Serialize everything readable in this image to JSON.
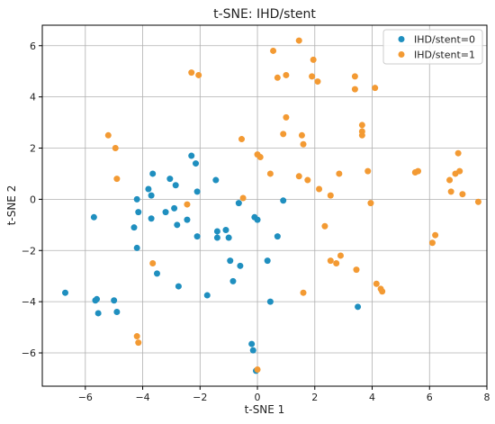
{
  "chart_data": {
    "type": "scatter",
    "title": "t-SNE: IHD/stent",
    "xlabel": "t-SNE 1",
    "ylabel": "t-SNE 2",
    "xlim": [
      -7.5,
      8.0
    ],
    "ylim": [
      -7.3,
      6.8
    ],
    "xticks": [
      -6,
      -4,
      -2,
      0,
      2,
      4,
      6,
      8
    ],
    "yticks": [
      -6,
      -4,
      -2,
      0,
      2,
      4,
      6
    ],
    "xtick_labels": [
      "−6",
      "−4",
      "−2",
      "0",
      "2",
      "4",
      "6",
      "8"
    ],
    "ytick_labels": [
      "−6",
      "−4",
      "−2",
      "0",
      "2",
      "4",
      "6"
    ],
    "grid": true,
    "legend_position": "top-right",
    "series": [
      {
        "name": "IHD/stent=0",
        "color": "#1f8fbf",
        "points": [
          [
            -6.7,
            -3.65
          ],
          [
            -5.7,
            -0.7
          ],
          [
            -5.65,
            -3.95
          ],
          [
            -5.6,
            -3.9
          ],
          [
            -5.55,
            -4.45
          ],
          [
            -5.0,
            -3.95
          ],
          [
            -4.9,
            -4.4
          ],
          [
            -4.3,
            -1.1
          ],
          [
            -4.2,
            0.0
          ],
          [
            -4.15,
            -0.5
          ],
          [
            -4.2,
            -1.9
          ],
          [
            -3.8,
            0.4
          ],
          [
            -3.7,
            0.15
          ],
          [
            -3.65,
            1.0
          ],
          [
            -3.7,
            -0.75
          ],
          [
            -3.5,
            -2.9
          ],
          [
            -3.2,
            -0.5
          ],
          [
            -3.05,
            0.8
          ],
          [
            -2.9,
            -0.35
          ],
          [
            -2.85,
            0.55
          ],
          [
            -2.8,
            -1.0
          ],
          [
            -2.75,
            -3.4
          ],
          [
            -2.45,
            -0.8
          ],
          [
            -2.3,
            1.7
          ],
          [
            -2.15,
            1.4
          ],
          [
            -2.1,
            0.3
          ],
          [
            -2.1,
            -1.45
          ],
          [
            -1.75,
            -3.75
          ],
          [
            -1.45,
            0.75
          ],
          [
            -1.4,
            -1.25
          ],
          [
            -1.4,
            -1.5
          ],
          [
            -1.1,
            -1.2
          ],
          [
            -1.0,
            -1.5
          ],
          [
            -0.95,
            -2.4
          ],
          [
            -0.85,
            -3.2
          ],
          [
            -0.65,
            -0.15
          ],
          [
            -0.6,
            -2.6
          ],
          [
            -0.2,
            -5.65
          ],
          [
            -0.15,
            -5.9
          ],
          [
            -0.1,
            -0.7
          ],
          [
            0.0,
            -0.8
          ],
          [
            -0.05,
            -6.7
          ],
          [
            0.35,
            -2.4
          ],
          [
            0.45,
            -4.0
          ],
          [
            0.7,
            -1.45
          ],
          [
            0.9,
            -0.05
          ],
          [
            3.5,
            -4.2
          ]
        ]
      },
      {
        "name": "IHD/stent=1",
        "color": "#f39a33",
        "points": [
          [
            -5.2,
            2.5
          ],
          [
            -4.95,
            2.0
          ],
          [
            -4.9,
            0.8
          ],
          [
            -4.2,
            -5.35
          ],
          [
            -4.15,
            -5.6
          ],
          [
            -3.65,
            -2.5
          ],
          [
            -2.45,
            -0.2
          ],
          [
            -2.3,
            4.95
          ],
          [
            -2.05,
            4.85
          ],
          [
            -0.55,
            2.35
          ],
          [
            -0.5,
            0.05
          ],
          [
            0.0,
            1.75
          ],
          [
            0.1,
            1.65
          ],
          [
            0.0,
            -6.65
          ],
          [
            0.45,
            1.0
          ],
          [
            0.55,
            5.8
          ],
          [
            0.7,
            4.75
          ],
          [
            0.9,
            2.55
          ],
          [
            1.0,
            3.2
          ],
          [
            1.0,
            4.85
          ],
          [
            1.45,
            6.2
          ],
          [
            1.45,
            0.9
          ],
          [
            1.55,
            2.5
          ],
          [
            1.6,
            2.15
          ],
          [
            1.6,
            -3.65
          ],
          [
            1.75,
            0.75
          ],
          [
            1.9,
            4.8
          ],
          [
            1.95,
            5.45
          ],
          [
            2.1,
            4.6
          ],
          [
            2.15,
            0.4
          ],
          [
            2.35,
            -1.05
          ],
          [
            2.55,
            0.15
          ],
          [
            2.55,
            -2.4
          ],
          [
            2.75,
            -2.5
          ],
          [
            2.85,
            1.0
          ],
          [
            2.9,
            -2.2
          ],
          [
            3.4,
            4.8
          ],
          [
            3.4,
            4.3
          ],
          [
            3.45,
            -2.75
          ],
          [
            3.65,
            2.9
          ],
          [
            3.65,
            2.65
          ],
          [
            3.65,
            2.5
          ],
          [
            3.85,
            1.1
          ],
          [
            3.95,
            -0.15
          ],
          [
            4.1,
            4.35
          ],
          [
            4.15,
            -3.3
          ],
          [
            4.3,
            -3.5
          ],
          [
            4.35,
            -3.6
          ],
          [
            5.5,
            1.05
          ],
          [
            5.6,
            1.1
          ],
          [
            6.1,
            -1.7
          ],
          [
            6.2,
            -1.4
          ],
          [
            6.7,
            0.75
          ],
          [
            6.75,
            0.3
          ],
          [
            6.9,
            1.0
          ],
          [
            7.0,
            1.8
          ],
          [
            7.05,
            1.1
          ],
          [
            7.15,
            0.2
          ],
          [
            7.7,
            -0.1
          ]
        ]
      }
    ]
  }
}
